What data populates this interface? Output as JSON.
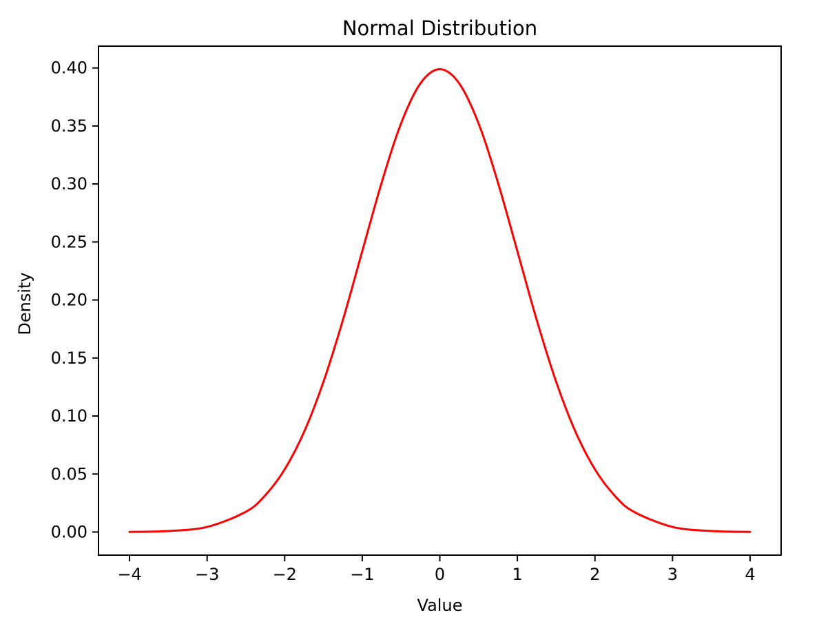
{
  "chart_data": {
    "type": "line",
    "title": "Normal Distribution",
    "xlabel": "Value",
    "ylabel": "Density",
    "xlim": [
      -4.4,
      4.4
    ],
    "ylim": [
      -0.0199,
      0.4188
    ],
    "x_ticks": [
      -4,
      -3,
      -2,
      -1,
      0,
      1,
      2,
      3,
      4
    ],
    "x_tick_labels": [
      "−4",
      "−3",
      "−2",
      "−1",
      "0",
      "1",
      "2",
      "3",
      "4"
    ],
    "y_ticks": [
      0.0,
      0.05,
      0.1,
      0.15,
      0.2,
      0.25,
      0.3,
      0.35,
      0.4
    ],
    "y_tick_labels": [
      "0.00",
      "0.05",
      "0.10",
      "0.15",
      "0.20",
      "0.25",
      "0.30",
      "0.35",
      "0.40"
    ],
    "grid": false,
    "series": [
      {
        "color": "#ff0000",
        "x": [
          -4.0,
          -3.5,
          -3.0,
          -2.5,
          -2.25,
          -2.0,
          -1.75,
          -1.5,
          -1.25,
          -1.0,
          -0.75,
          -0.5,
          -0.25,
          0.0,
          0.25,
          0.5,
          0.75,
          1.0,
          1.25,
          1.5,
          1.75,
          2.0,
          2.25,
          2.5,
          3.0,
          3.5,
          4.0
        ],
        "y": [
          0.0001,
          0.0009,
          0.0044,
          0.0175,
          0.0317,
          0.054,
          0.0863,
          0.1295,
          0.1826,
          0.242,
          0.3011,
          0.3521,
          0.3867,
          0.3989,
          0.3867,
          0.3521,
          0.3011,
          0.242,
          0.1826,
          0.1295,
          0.0863,
          0.054,
          0.0317,
          0.0175,
          0.0044,
          0.0009,
          0.0001
        ]
      }
    ]
  }
}
